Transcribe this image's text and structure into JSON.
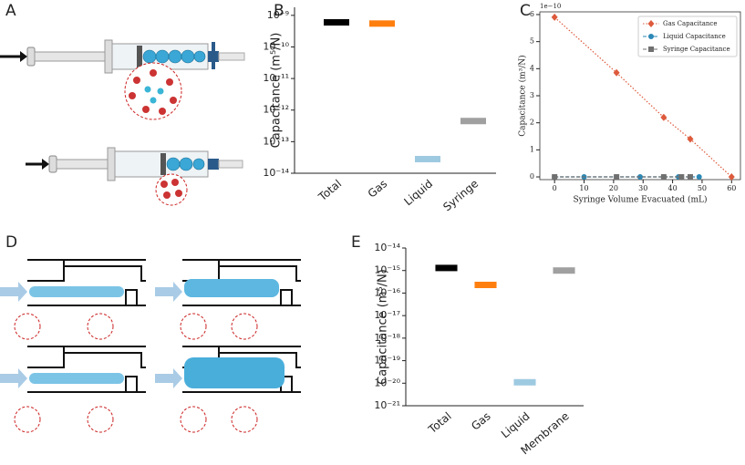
{
  "panel_labels": [
    "A",
    "B",
    "C",
    "D",
    "E"
  ],
  "chart_data": [
    {
      "type": "level",
      "yscale": "log",
      "ylabel": "Capacitance (m⁵/N)",
      "categories": [
        "Total",
        "Gas",
        "Liquid",
        "Syringe"
      ],
      "values": [
        6e-10,
        5.5e-10,
        2.8e-14,
        4.5e-13
      ],
      "colors": [
        "#000000",
        "#ff7f0e",
        "#9ecae1",
        "#a0a0a0"
      ],
      "ylim": [
        1e-14,
        1.8e-09
      ],
      "yticks": [
        {
          "value": 1e-14,
          "label": "10⁻¹⁴"
        },
        {
          "value": 1e-13,
          "label": "10⁻¹³"
        },
        {
          "value": 1e-12,
          "label": "10⁻¹²"
        },
        {
          "value": 1e-11,
          "label": "10⁻¹¹"
        },
        {
          "value": 1e-10,
          "label": "10⁻¹⁰"
        },
        {
          "value": 1e-09,
          "label": "10⁻⁹"
        }
      ]
    },
    {
      "type": "line",
      "xlabel": "Syringe Volume Evacuated (mL)",
      "ylabel": "Capacitance (m³/N)",
      "offset_text": "1e−10",
      "series": [
        {
          "name": "Gas Capacitance",
          "color": "#dd5a3c",
          "marker": "diamond",
          "linestyle": "dotted",
          "x": [
            0,
            21,
            37,
            46,
            60
          ],
          "values": [
            5.9,
            3.85,
            2.2,
            1.4,
            0
          ]
        },
        {
          "name": "Liquid Capacitance",
          "color": "#2b88b6",
          "marker": "circle",
          "linestyle": "dashed",
          "x": [
            0,
            10,
            21,
            29,
            37,
            42,
            46,
            49
          ],
          "values": [
            0,
            0,
            0,
            0,
            0,
            0,
            0,
            0
          ]
        },
        {
          "name": "Syringe Capacitance",
          "color": "#707070",
          "marker": "square",
          "linestyle": "dashed",
          "x": [
            0,
            21,
            37,
            43,
            46
          ],
          "values": [
            0,
            0,
            0,
            0,
            0
          ]
        }
      ],
      "xlim": [
        -5,
        63
      ],
      "ylim": [
        -0.1,
        6.1
      ],
      "xticks": [
        0,
        10,
        20,
        30,
        40,
        50,
        60
      ],
      "yticks": [
        0,
        1,
        2,
        3,
        4,
        5,
        6
      ],
      "legend": "upper right"
    },
    {
      "type": "level",
      "yscale": "log",
      "ylabel": "Capacitance (m⁵/N)",
      "categories": [
        "Total",
        "Gas",
        "Liquid",
        "Membrane"
      ],
      "values": [
        1.3e-15,
        2.3e-16,
        1.1e-20,
        1e-15
      ],
      "colors": [
        "#000000",
        "#ff7f0e",
        "#9ecae1",
        "#a0a0a0"
      ],
      "ylim": [
        1e-21,
        1e-14
      ],
      "yticks": [
        {
          "value": 1e-21,
          "label": "10⁻²¹"
        },
        {
          "value": 1e-20,
          "label": "10⁻²⁰"
        },
        {
          "value": 1e-19,
          "label": "10⁻¹⁹"
        },
        {
          "value": 1e-18,
          "label": "10⁻¹⁸"
        },
        {
          "value": 1e-17,
          "label": "10⁻¹⁷"
        },
        {
          "value": 1e-16,
          "label": "10⁻¹⁶"
        },
        {
          "value": 1e-15,
          "label": "10⁻¹⁵"
        },
        {
          "value": 1e-14,
          "label": "10⁻¹⁴"
        }
      ]
    }
  ]
}
